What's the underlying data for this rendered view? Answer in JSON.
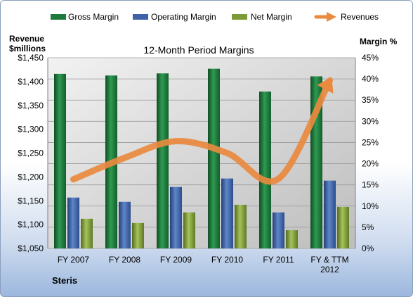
{
  "company": "Steris",
  "chart_data": {
    "type": "bar",
    "title": "12-Month Period Margins",
    "left_axis_label": [
      "Revenue",
      "$millions"
    ],
    "right_axis_label": "Margin %",
    "categories": [
      [
        "FY 2007"
      ],
      [
        "FY 2008"
      ],
      [
        "FY 2009"
      ],
      [
        "FY 2010"
      ],
      [
        "FY 2011"
      ],
      [
        "FY & TTM",
        "2012"
      ]
    ],
    "left_ticks": [
      "$1,050",
      "$1,100",
      "$1,150",
      "$1,200",
      "$1,250",
      "$1,300",
      "$1,350",
      "$1,400",
      "$1,450"
    ],
    "right_ticks": [
      "0%",
      "5%",
      "10%",
      "15%",
      "20%",
      "25%",
      "30%",
      "35%",
      "40%",
      "45%"
    ],
    "ylim_left": [
      1050,
      1450
    ],
    "ylim_right": [
      0,
      45
    ],
    "legend_position": "top",
    "series": [
      {
        "name": "Gross Margin",
        "axis": "right",
        "color": "#1e7a3c",
        "values": [
          41.2,
          40.8,
          41.3,
          42.4,
          37.0,
          40.6
        ]
      },
      {
        "name": "Operating Margin",
        "axis": "right",
        "color": "#3e62a8",
        "values": [
          12.0,
          11.0,
          14.5,
          16.5,
          8.5,
          16.0
        ]
      },
      {
        "name": "Net Margin",
        "axis": "right",
        "color": "#7c9b36",
        "values": [
          7.0,
          6.0,
          8.5,
          10.3,
          4.3,
          9.8
        ]
      },
      {
        "name": "Revenues",
        "axis": "left",
        "type": "line",
        "color": "#e98a3f",
        "values": [
          1195,
          1240,
          1275,
          1250,
          1196,
          1402
        ]
      }
    ]
  }
}
